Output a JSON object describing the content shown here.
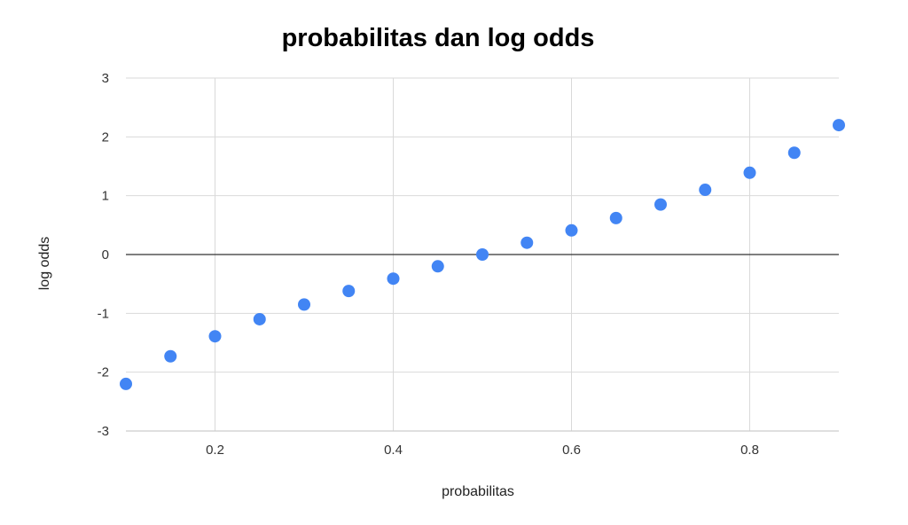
{
  "chart_data": {
    "type": "scatter",
    "title": "probabilitas dan log odds",
    "xlabel": "probabilitas",
    "ylabel": "log odds",
    "xlim": [
      0.1,
      0.9
    ],
    "ylim": [
      -3,
      3
    ],
    "x_ticks": [
      "0.2",
      "0.4",
      "0.6",
      "0.8"
    ],
    "y_ticks": [
      "3",
      "2",
      "1",
      "0",
      "-1",
      "-2",
      "-3"
    ],
    "grid": true,
    "legend": "none",
    "series": [
      {
        "color": "#4285f4",
        "x": [
          0.1,
          0.15,
          0.2,
          0.25,
          0.3,
          0.35,
          0.4,
          0.45,
          0.5,
          0.55,
          0.6,
          0.65,
          0.7,
          0.75,
          0.8,
          0.85,
          0.9
        ],
        "y": [
          -2.2,
          -1.73,
          -1.39,
          -1.1,
          -0.85,
          -0.62,
          -0.41,
          -0.2,
          0,
          0.2,
          0.41,
          0.62,
          0.85,
          1.1,
          1.39,
          1.73,
          2.2
        ]
      }
    ]
  }
}
